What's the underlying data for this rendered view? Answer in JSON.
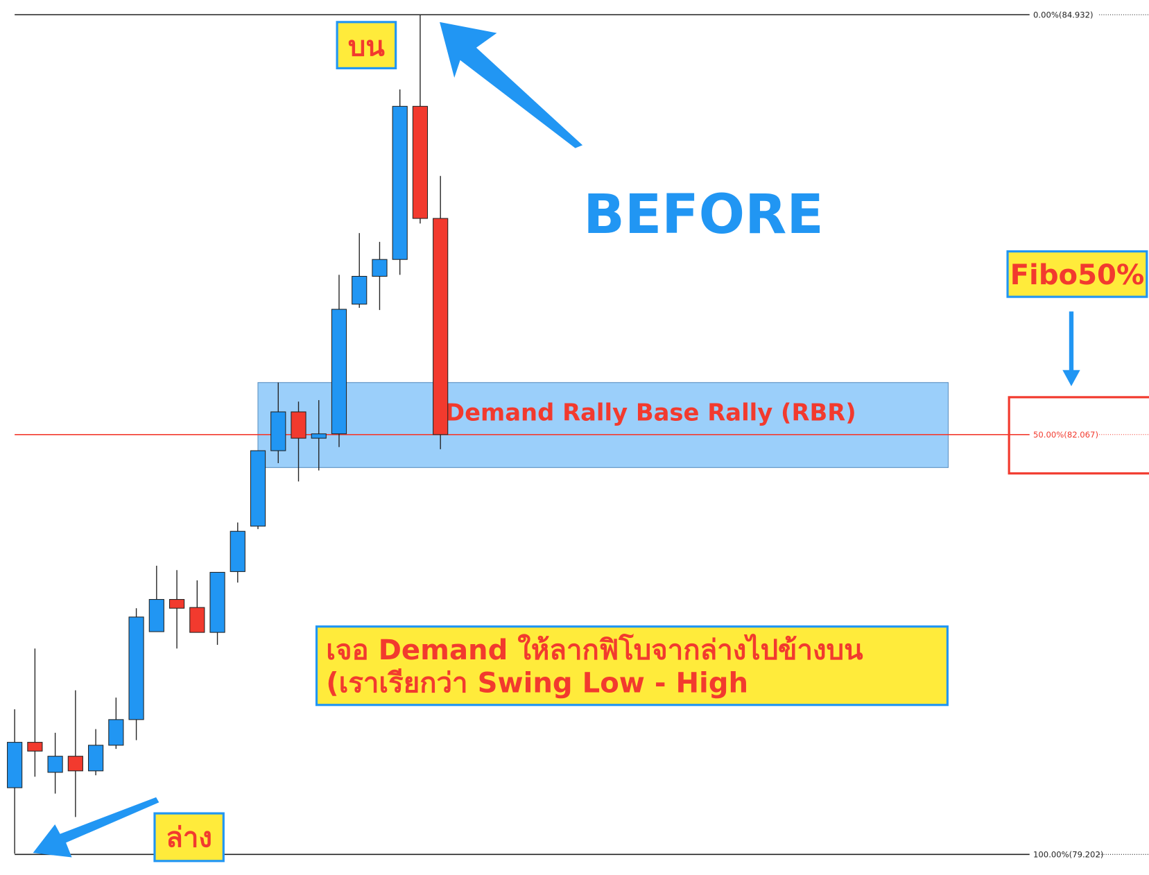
{
  "chart_data": {
    "type": "candlestick",
    "up_color": "#2196f3",
    "down_color": "#f23a2e",
    "ylim": [
      79.062,
      85.032
    ],
    "candles": [
      {
        "open": 79.657,
        "high": 80.192,
        "low": 79.207,
        "close": 79.967
      },
      {
        "open": 79.967,
        "high": 80.607,
        "low": 79.732,
        "close": 79.907
      },
      {
        "open": 79.762,
        "high": 80.032,
        "low": 79.617,
        "close": 79.872
      },
      {
        "open": 79.872,
        "high": 80.322,
        "low": 79.457,
        "close": 79.772
      },
      {
        "open": 79.772,
        "high": 80.057,
        "low": 79.742,
        "close": 79.947
      },
      {
        "open": 79.947,
        "high": 80.272,
        "low": 79.922,
        "close": 80.122
      },
      {
        "open": 80.122,
        "high": 80.882,
        "low": 79.982,
        "close": 80.822
      },
      {
        "open": 80.722,
        "high": 81.172,
        "low": 80.722,
        "close": 80.942
      },
      {
        "open": 80.942,
        "high": 81.142,
        "low": 80.607,
        "close": 80.882
      },
      {
        "open": 80.887,
        "high": 81.072,
        "low": 80.717,
        "close": 80.717
      },
      {
        "open": 80.717,
        "high": 81.127,
        "low": 80.632,
        "close": 81.127
      },
      {
        "open": 81.132,
        "high": 81.467,
        "low": 81.057,
        "close": 81.407
      },
      {
        "open": 81.442,
        "high": 81.957,
        "low": 81.422,
        "close": 81.957
      },
      {
        "open": 81.957,
        "high": 82.422,
        "low": 81.872,
        "close": 82.222
      },
      {
        "open": 82.222,
        "high": 82.292,
        "low": 81.747,
        "close": 82.042
      },
      {
        "open": 82.042,
        "high": 82.302,
        "low": 81.822,
        "close": 82.072
      },
      {
        "open": 82.072,
        "high": 83.157,
        "low": 81.982,
        "close": 82.922
      },
      {
        "open": 82.957,
        "high": 83.442,
        "low": 82.932,
        "close": 83.147
      },
      {
        "open": 83.147,
        "high": 83.382,
        "low": 82.917,
        "close": 83.262
      },
      {
        "open": 83.262,
        "high": 84.422,
        "low": 83.157,
        "close": 84.307
      },
      {
        "open": 84.307,
        "high": 84.932,
        "low": 83.507,
        "close": 83.542
      },
      {
        "open": 83.542,
        "high": 83.832,
        "low": 81.967,
        "close": 82.067
      }
    ],
    "fib_levels": [
      {
        "value": 84.932,
        "label": "0.00%(84.932)",
        "color": "#222222"
      },
      {
        "value": 82.067,
        "label": "50.00%(82.067)",
        "color": "#f23a2e"
      },
      {
        "value": 79.202,
        "label": "100.00%(79.202)",
        "color": "#222222"
      }
    ],
    "zone": {
      "low": 81.842,
      "high": 82.422,
      "label": "Demand Rally Base Rally (RBR)"
    },
    "annotations": {
      "top": "บน",
      "bottom": "ล่าง",
      "before": "BEFORE",
      "fibo": "Fibo50%",
      "note_line1": "เจอ Demand ให้ลากฟิโบจากล่างไปข้างบน",
      "note_line2": "(เราเรียกว่า Swing Low - High"
    }
  }
}
